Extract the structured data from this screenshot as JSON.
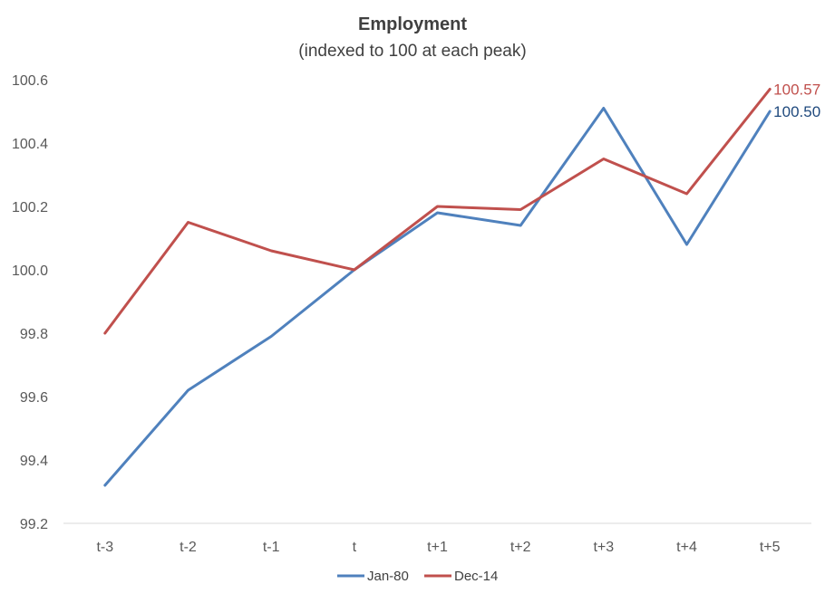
{
  "chart_data": {
    "type": "line",
    "title": "Employment",
    "subtitle": "(indexed to 100 at each peak)",
    "xlabel": "",
    "ylabel": "",
    "categories": [
      "t-3",
      "t-2",
      "t-1",
      "t",
      "t+1",
      "t+2",
      "t+3",
      "t+4",
      "t+5"
    ],
    "ylim": [
      99.2,
      100.6
    ],
    "yticks": [
      99.2,
      99.4,
      99.6,
      99.8,
      100.0,
      100.2,
      100.4,
      100.6
    ],
    "grid": false,
    "legend": "bottom",
    "series": [
      {
        "name": "Jan-80",
        "color": "#4f81bd",
        "values": [
          99.32,
          99.62,
          99.79,
          100.0,
          100.18,
          100.14,
          100.51,
          100.08,
          100.5
        ],
        "end_label": "100.50"
      },
      {
        "name": "Dec-14",
        "color": "#c0504d",
        "values": [
          99.8,
          100.15,
          100.06,
          100.0,
          100.2,
          100.19,
          100.35,
          100.24,
          100.57
        ],
        "end_label": "100.57"
      }
    ]
  }
}
